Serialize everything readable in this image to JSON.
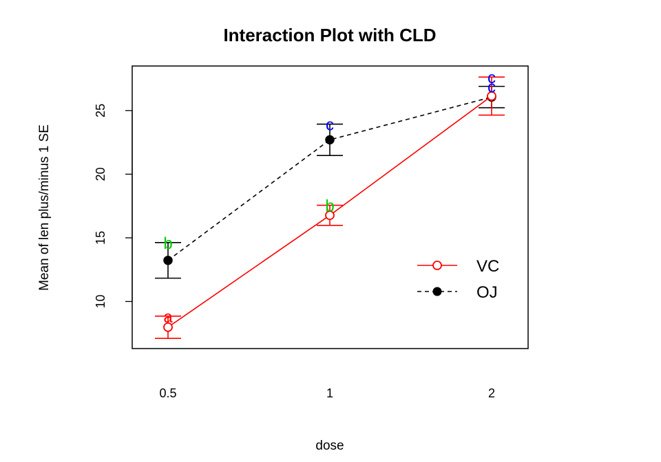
{
  "chart_data": {
    "type": "line",
    "title": "Interaction Plot with CLD",
    "xlabel": "dose",
    "ylabel": "Mean of  len plus/minus 1 SE",
    "categories": [
      "0.5",
      "1",
      "2"
    ],
    "y_ticks": [
      10,
      15,
      20,
      25
    ],
    "ylim": [
      6.3,
      28.5
    ],
    "grid": false,
    "legend_position": "center-right",
    "series": [
      {
        "name": "VC",
        "color": "#ff0000",
        "marker": "open-circle",
        "line_style": "solid",
        "values": [
          7.98,
          16.77,
          26.14
        ],
        "se_lower": [
          7.1,
          15.98,
          24.64
        ],
        "se_upper": [
          8.85,
          17.56,
          27.63
        ],
        "cld_letters": [
          "a",
          "b",
          "c"
        ],
        "cld_colors": [
          "#ff0000",
          "#00cc00",
          "#0000ff"
        ],
        "cld_y": [
          8.85,
          17.56,
          27.63
        ]
      },
      {
        "name": "OJ",
        "color": "#000000",
        "marker": "filled-circle",
        "line_style": "dashed",
        "values": [
          13.23,
          22.7,
          26.06
        ],
        "se_lower": [
          11.83,
          21.47,
          25.22
        ],
        "se_upper": [
          14.63,
          23.93,
          26.9
        ],
        "cld_letters": [
          "b",
          "c",
          "c"
        ],
        "cld_colors": [
          "#00cc00",
          "#0000ff",
          "#0000ff"
        ],
        "cld_y": [
          14.63,
          23.93,
          26.9
        ]
      }
    ]
  }
}
